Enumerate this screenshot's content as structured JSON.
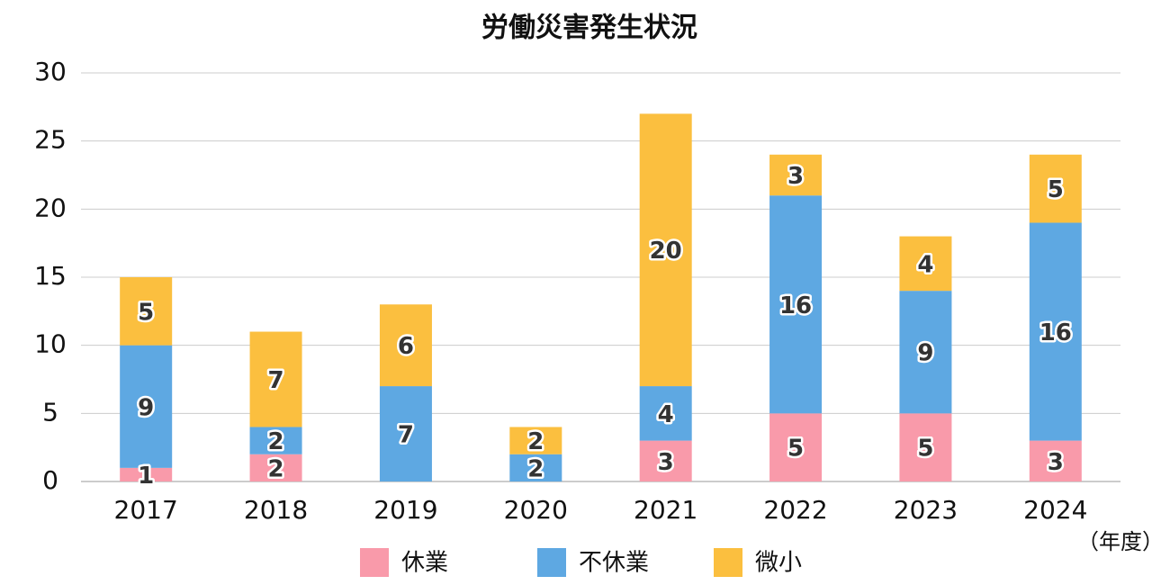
{
  "chart_data": {
    "type": "stacked-bar",
    "title": "労働災害発生状況",
    "categories": [
      "2017",
      "2018",
      "2019",
      "2020",
      "2021",
      "2022",
      "2023",
      "2024"
    ],
    "x_unit_label": "（年度）",
    "series": [
      {
        "name": "休業",
        "color": "#f99aaa",
        "values": [
          1,
          2,
          null,
          null,
          3,
          5,
          5,
          3
        ]
      },
      {
        "name": "不休業",
        "color": "#5ea8e2",
        "values": [
          9,
          2,
          7,
          2,
          4,
          16,
          9,
          16
        ]
      },
      {
        "name": "微小",
        "color": "#fbbf3f",
        "values": [
          5,
          7,
          6,
          2,
          20,
          3,
          4,
          5
        ]
      }
    ],
    "ylim": [
      0,
      30
    ],
    "yticks": [
      0,
      5,
      10,
      15,
      20,
      25,
      30
    ],
    "grid": true
  }
}
